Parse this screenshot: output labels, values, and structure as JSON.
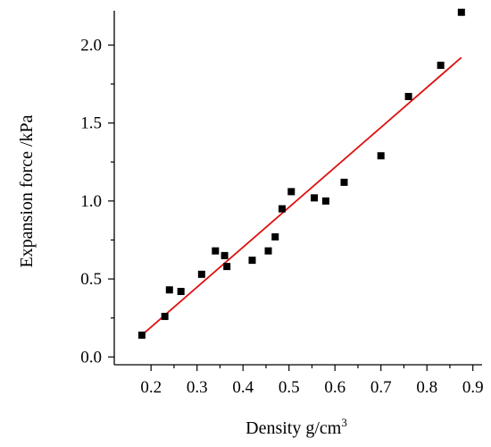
{
  "chart_data": {
    "type": "scatter",
    "title": "",
    "xlabel": "Density g/cm",
    "xlabel_superscript": "3",
    "ylabel": "Expansion force /kPa",
    "xlim": [
      0.12,
      0.92
    ],
    "ylim": [
      -0.05,
      2.22
    ],
    "x_ticks": [
      0.2,
      0.3,
      0.4,
      0.5,
      0.6,
      0.7,
      0.8,
      0.9
    ],
    "x_tick_labels": [
      "0.2",
      "0.3",
      "0.4",
      "0.5",
      "0.6",
      "0.7",
      "0.8",
      "0.9"
    ],
    "y_ticks": [
      0.0,
      0.5,
      1.0,
      1.5,
      2.0
    ],
    "y_tick_labels": [
      "0.0",
      "0.5",
      "1.0",
      "1.5",
      "2.0"
    ],
    "grid": false,
    "legend": "none",
    "series": [
      {
        "marker": "square",
        "color": "#000000",
        "points": [
          {
            "x": 0.18,
            "y": 0.14
          },
          {
            "x": 0.23,
            "y": 0.26
          },
          {
            "x": 0.24,
            "y": 0.43
          },
          {
            "x": 0.265,
            "y": 0.42
          },
          {
            "x": 0.31,
            "y": 0.53
          },
          {
            "x": 0.34,
            "y": 0.68
          },
          {
            "x": 0.36,
            "y": 0.65
          },
          {
            "x": 0.365,
            "y": 0.58
          },
          {
            "x": 0.42,
            "y": 0.62
          },
          {
            "x": 0.455,
            "y": 0.68
          },
          {
            "x": 0.47,
            "y": 0.77
          },
          {
            "x": 0.485,
            "y": 0.95
          },
          {
            "x": 0.505,
            "y": 1.06
          },
          {
            "x": 0.555,
            "y": 1.02
          },
          {
            "x": 0.58,
            "y": 1.0
          },
          {
            "x": 0.62,
            "y": 1.12
          },
          {
            "x": 0.7,
            "y": 1.29
          },
          {
            "x": 0.76,
            "y": 1.67
          },
          {
            "x": 0.83,
            "y": 1.87
          },
          {
            "x": 0.875,
            "y": 2.21
          }
        ]
      }
    ],
    "fit_line": {
      "color": "#e01010",
      "x": [
        0.18,
        0.875
      ],
      "y": [
        0.14,
        1.92
      ]
    }
  }
}
